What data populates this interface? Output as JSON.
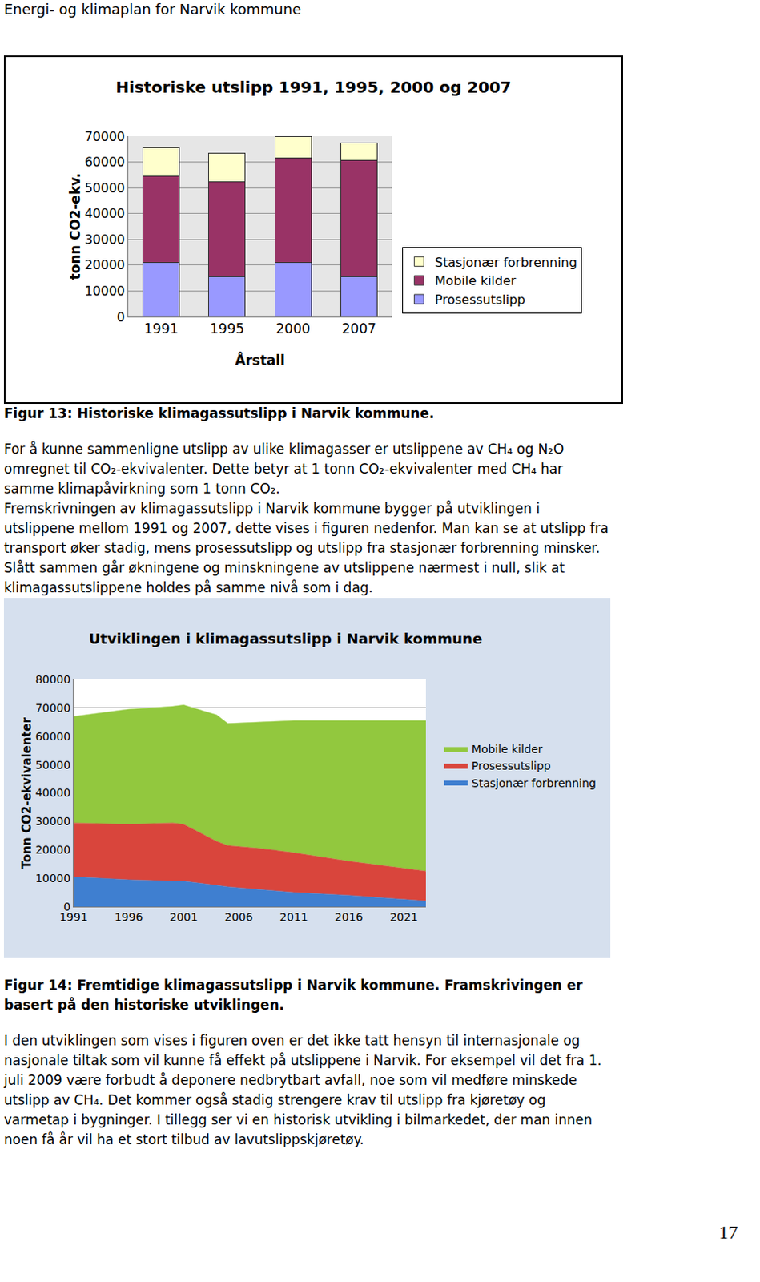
{
  "header": "Energi- og klimaplan for Narvik kommune",
  "chart_data": [
    {
      "type": "bar",
      "title": "Historiske utslipp 1991, 1995, 2000 og 2007",
      "x_label": "Årstall",
      "y_label": "tonn CO2-ekv.",
      "categories": [
        "1991",
        "1995",
        "2000",
        "2007"
      ],
      "series": [
        {
          "name": "Prosessutslipp",
          "color": "#9999ff",
          "values": [
            21000,
            15500,
            21000,
            15500
          ]
        },
        {
          "name": "Mobile kilder",
          "color": "#993366",
          "values": [
            33500,
            37000,
            40500,
            45000
          ]
        },
        {
          "name": "Stasjonær forbrenning",
          "color": "#ffffcc",
          "values": [
            11000,
            11000,
            8500,
            7000
          ]
        }
      ],
      "ylim": [
        0,
        70000
      ],
      "yticks": [
        0,
        10000,
        20000,
        30000,
        40000,
        50000,
        60000,
        70000
      ],
      "grid": true,
      "stacked": true,
      "legend": "right"
    },
    {
      "type": "area",
      "title": "Utviklingen i klimagassutslipp i Narvik kommune",
      "y_label": "Tonn CO2-ekvivalenter",
      "x": [
        1991,
        1996,
        2000,
        2001,
        2004,
        2005,
        2008,
        2011,
        2016,
        2021,
        2023
      ],
      "series": [
        {
          "name": "Stasjonær forbrenning",
          "color": "#3f7fd0",
          "values": [
            10500,
            9500,
            9000,
            9000,
            7500,
            7000,
            6000,
            5000,
            4000,
            2500,
            2000
          ]
        },
        {
          "name": "Prosessutslipp",
          "color": "#d9453c",
          "values": [
            19000,
            19500,
            20500,
            20000,
            15500,
            14500,
            14500,
            14000,
            12000,
            11000,
            10500
          ]
        },
        {
          "name": "Mobile kilder",
          "color": "#92c83e",
          "values": [
            37500,
            40500,
            41000,
            42000,
            44500,
            43000,
            44500,
            46500,
            49500,
            52000,
            53000
          ]
        }
      ],
      "xlim": [
        1991,
        2023
      ],
      "xticks": [
        1991,
        1996,
        2001,
        2006,
        2011,
        2016,
        2021
      ],
      "ylim": [
        0,
        80000
      ],
      "yticks": [
        0,
        10000,
        20000,
        30000,
        40000,
        50000,
        60000,
        70000,
        80000
      ],
      "grid": true,
      "stacked": true,
      "legend": "right"
    }
  ],
  "caption_1": [
    "Figur 13: Historiske klimagassutslipp i Narvik kommune."
  ],
  "paragraph_1": [
    "For å kunne sammenligne utslipp av ulike klimagasser er utslippene av CH₄ og N₂O",
    "omregnet til CO₂-ekvivalenter. Dette betyr at 1 tonn CO₂-ekvivalenter med CH₄ har",
    "samme klimapåvirkning som 1 tonn CO₂.",
    "Fremskrivningen av klimagassutslipp i Narvik kommune bygger på utviklingen i",
    "utslippene mellom 1991 og 2007, dette vises i figuren nedenfor. Man kan se at utslipp fra",
    "transport øker stadig, mens prosessutslipp og utslipp fra stasjonær forbrenning minsker.",
    "Slått sammen går økningene og minskningene av utslippene nærmest i null, slik at",
    "klimagassutslippene holdes på samme nivå som i dag."
  ],
  "caption_2": [
    "Figur 14: Fremtidige klimagassutslipp i Narvik kommune. Framskrivingen er",
    "basert på den historiske utviklingen."
  ],
  "paragraph_2": [
    "I den utviklingen som vises i figuren oven er det ikke tatt hensyn til internasjonale og",
    "nasjonale tiltak som vil kunne få effekt på utslippene i Narvik. For eksempel vil det fra 1.",
    "juli 2009 være forbudt å deponere nedbrytbart avfall, noe som vil medføre minskede",
    "utslipp av CH₄. Det kommer også stadig strengere krav til utslipp fra kjøretøy og",
    "varmetap i bygninger. I tillegg ser vi en historisk utvikling i bilmarkedet, der man innen",
    "noen få år vil ha et stort tilbud av lavutslippskjøretøy."
  ],
  "page_number": "17"
}
